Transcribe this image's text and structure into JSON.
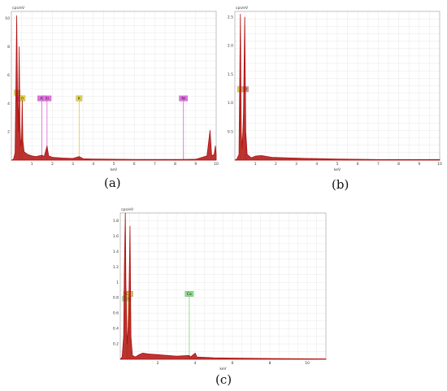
{
  "captions": {
    "a": "(a)",
    "b": "(b)",
    "c": "(c)"
  },
  "colors": {
    "spectrum": "#b01010",
    "grid": "#e2e2e2",
    "frame": "#9a9a9a"
  },
  "chart_data": [
    {
      "type": "line",
      "panel": "(a)",
      "unit_label": "cps/eV",
      "xlabel": "keV",
      "xlim": [
        0,
        10
      ],
      "ylim": [
        0,
        10.5
      ],
      "xticks": [
        1,
        2,
        3,
        4,
        5,
        6,
        7,
        8,
        9,
        10
      ],
      "yticks": [
        2,
        4,
        6,
        8,
        10
      ],
      "series": [
        {
          "values": [
            [
              0.0,
              0.0
            ],
            [
              0.1,
              0.05
            ],
            [
              0.18,
              0.5
            ],
            [
              0.22,
              5.0
            ],
            [
              0.26,
              10.2
            ],
            [
              0.3,
              4.5
            ],
            [
              0.34,
              2.0
            ],
            [
              0.38,
              8.0
            ],
            [
              0.42,
              2.5
            ],
            [
              0.46,
              1.0
            ],
            [
              0.5,
              1.6
            ],
            [
              0.53,
              4.2
            ],
            [
              0.56,
              1.4
            ],
            [
              0.62,
              0.6
            ],
            [
              0.7,
              0.5
            ],
            [
              0.8,
              0.4
            ],
            [
              1.0,
              0.3
            ],
            [
              1.2,
              0.25
            ],
            [
              1.49,
              0.35
            ],
            [
              1.6,
              0.25
            ],
            [
              1.74,
              1.0
            ],
            [
              1.82,
              0.3
            ],
            [
              2.0,
              0.2
            ],
            [
              2.5,
              0.15
            ],
            [
              3.0,
              0.12
            ],
            [
              3.31,
              0.25
            ],
            [
              3.5,
              0.1
            ],
            [
              4.0,
              0.08
            ],
            [
              5.0,
              0.06
            ],
            [
              6.0,
              0.05
            ],
            [
              7.0,
              0.05
            ],
            [
              8.0,
              0.05
            ],
            [
              8.4,
              0.05
            ],
            [
              9.0,
              0.06
            ],
            [
              9.55,
              0.3
            ],
            [
              9.7,
              2.1
            ],
            [
              9.78,
              0.3
            ],
            [
              9.9,
              0.4
            ],
            [
              9.96,
              1.0
            ],
            [
              10.0,
              0.4
            ]
          ]
        }
      ],
      "markers": [
        {
          "label": "C",
          "x": 0.28,
          "level": 4.6,
          "color": "#e3d54a"
        },
        {
          "label": "N",
          "x": 0.39,
          "level": 4.2,
          "color": "#e070e0"
        },
        {
          "label": "O",
          "x": 0.53,
          "level": 4.2,
          "color": "#e3d54a"
        },
        {
          "label": "Al",
          "x": 1.49,
          "level": 4.2,
          "color": "#e070e0"
        },
        {
          "label": "Si",
          "x": 1.74,
          "level": 4.2,
          "color": "#e070e0"
        },
        {
          "label": "K",
          "x": 3.31,
          "level": 4.2,
          "color": "#e3d54a"
        },
        {
          "label": "Ni",
          "x": 8.4,
          "level": 4.2,
          "color": "#e070e0"
        }
      ]
    },
    {
      "type": "line",
      "panel": "(b)",
      "unit_label": "cps/eV",
      "xlabel": "keV",
      "xlim": [
        0,
        10
      ],
      "ylim": [
        0,
        2.6
      ],
      "xticks": [
        1,
        2,
        3,
        4,
        5,
        6,
        7,
        8,
        9,
        10
      ],
      "yticks": [
        0.5,
        1.0,
        1.5,
        2.0,
        2.5
      ],
      "series": [
        {
          "values": [
            [
              0.0,
              0.0
            ],
            [
              0.1,
              0.02
            ],
            [
              0.2,
              0.1
            ],
            [
              0.24,
              1.5
            ],
            [
              0.27,
              2.55
            ],
            [
              0.31,
              0.5
            ],
            [
              0.36,
              0.2
            ],
            [
              0.42,
              0.8
            ],
            [
              0.48,
              2.5
            ],
            [
              0.53,
              0.5
            ],
            [
              0.6,
              0.1
            ],
            [
              0.8,
              0.04
            ],
            [
              1.0,
              0.07
            ],
            [
              1.3,
              0.08
            ],
            [
              1.8,
              0.05
            ],
            [
              2.5,
              0.04
            ],
            [
              3.5,
              0.03
            ],
            [
              5.0,
              0.02
            ],
            [
              7.0,
              0.01
            ],
            [
              10.0,
              0.01
            ]
          ]
        }
      ],
      "markers": [
        {
          "label": "C",
          "x": 0.27,
          "level": 1.2,
          "color": "#e3d54a"
        },
        {
          "label": "O",
          "x": 0.52,
          "level": 1.2,
          "color": "#f08a8a"
        }
      ]
    },
    {
      "type": "line",
      "panel": "(c)",
      "unit_label": "cps/eV",
      "xlabel": "keV",
      "xlim": [
        0,
        11
      ],
      "ylim": [
        0,
        1.9
      ],
      "xticks": [
        2,
        4,
        6,
        8,
        10
      ],
      "yticks": [
        0.2,
        0.4,
        0.6,
        0.8,
        1.0,
        1.2,
        1.4,
        1.6,
        1.8
      ],
      "series": [
        {
          "values": [
            [
              0.0,
              0.0
            ],
            [
              0.1,
              0.03
            ],
            [
              0.18,
              0.3
            ],
            [
              0.22,
              1.2
            ],
            [
              0.27,
              1.9
            ],
            [
              0.3,
              1.0
            ],
            [
              0.34,
              0.4
            ],
            [
              0.38,
              0.2
            ],
            [
              0.45,
              0.6
            ],
            [
              0.52,
              1.73
            ],
            [
              0.57,
              0.3
            ],
            [
              0.65,
              0.05
            ],
            [
              0.8,
              0.03
            ],
            [
              1.0,
              0.06
            ],
            [
              1.2,
              0.08
            ],
            [
              1.5,
              0.07
            ],
            [
              2.0,
              0.06
            ],
            [
              3.0,
              0.04
            ],
            [
              3.69,
              0.05
            ],
            [
              3.75,
              0.03
            ],
            [
              4.01,
              0.08
            ],
            [
              4.1,
              0.03
            ],
            [
              5.0,
              0.02
            ],
            [
              6.0,
              0.015
            ],
            [
              8.0,
              0.01
            ],
            [
              11.0,
              0.005
            ]
          ]
        }
      ],
      "markers": [
        {
          "label": "O",
          "x": 0.52,
          "level": 0.82,
          "color": "#e3d54a"
        },
        {
          "label": "Ca",
          "x": 0.34,
          "level": 0.76,
          "color": "#88e088"
        },
        {
          "label": "Cl",
          "x": 0.4,
          "level": 0.82,
          "color": "#e3d54a"
        },
        {
          "label": "Ca",
          "x": 3.69,
          "level": 0.82,
          "color": "#88e088"
        }
      ]
    }
  ]
}
